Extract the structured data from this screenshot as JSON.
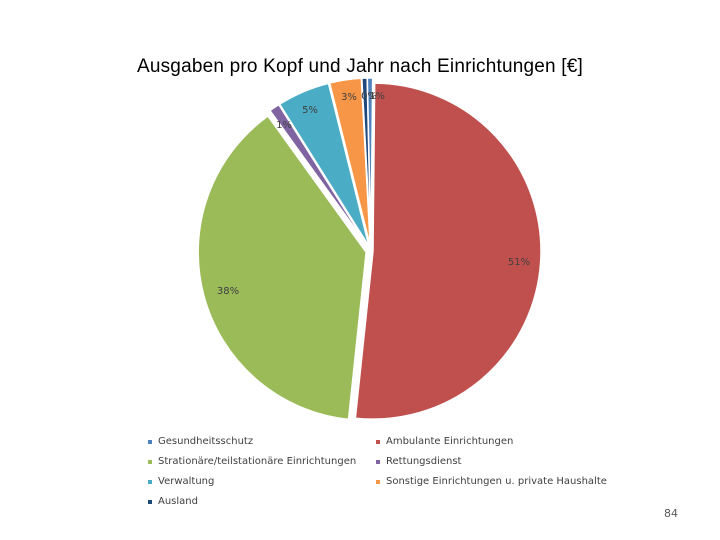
{
  "chart_data": {
    "type": "pie",
    "title": "Ausgaben pro Kopf und Jahr nach Einrichtungen [€]",
    "slices": [
      {
        "name": "Ambulante Einrichtungen",
        "value": 51,
        "label": "51%",
        "color": "#C0504D"
      },
      {
        "name": "Stationäre/teilstationäre Einrichtungen",
        "value": 38,
        "label": "38%",
        "color": "#9BBB59"
      },
      {
        "name": "Rettungsdienst",
        "value": 1,
        "label": "1%",
        "color": "#8064A2"
      },
      {
        "name": "Verwaltung",
        "value": 5,
        "label": "5%",
        "color": "#4BACC6"
      },
      {
        "name": "Sonstige Einrichtungen u. private Haushalte",
        "value": 3,
        "label": "3%",
        "color": "#F79646"
      },
      {
        "name": "Ausland",
        "value": 0.5,
        "label": "0%",
        "color": "#1F497D"
      },
      {
        "name": "Gesundheitsschutz",
        "value": 0.5,
        "label": "1%",
        "color": "#4F81BD"
      }
    ],
    "legend": [
      {
        "label": "Gesundheitsschutz",
        "color": "#4F81BD"
      },
      {
        "label": "Ambulante Einrichtungen",
        "color": "#C0504D"
      },
      {
        "label": "Strationäre/teilstationäre Einrichtungen",
        "color": "#9BBB59"
      },
      {
        "label": "Rettungsdienst",
        "color": "#8064A2"
      },
      {
        "label": "Verwaltung",
        "color": "#4BACC6"
      },
      {
        "label": "Sonstige Einrichtungen u. private Haushalte",
        "color": "#F79646"
      },
      {
        "label": "Ausland",
        "color": "#1F497D"
      }
    ],
    "legend_position": "bottom"
  },
  "page": {
    "number": "84"
  }
}
